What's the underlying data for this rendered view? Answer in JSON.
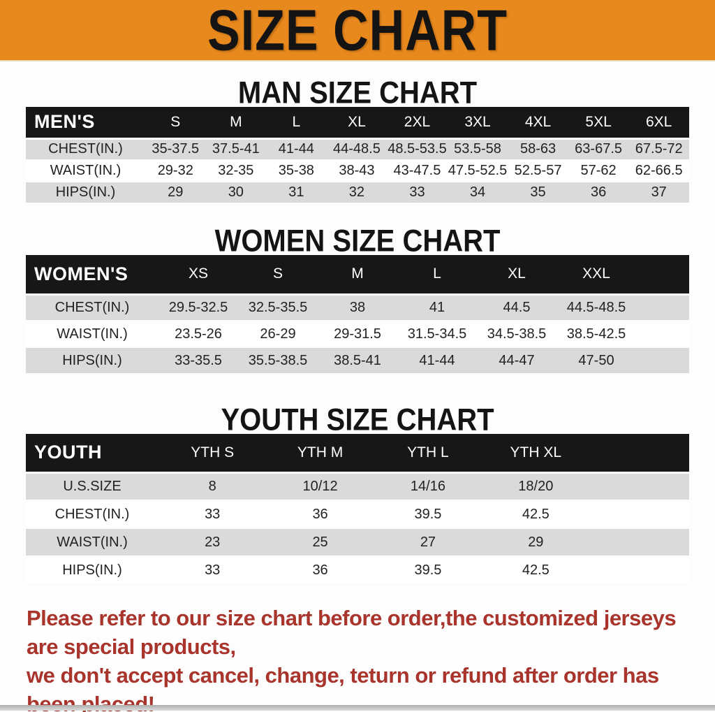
{
  "banner": {
    "title": "SIZE CHART"
  },
  "colors": {
    "banner_bg": "#E8891E",
    "header_bar": "#171717",
    "row_alt": "#DADADA",
    "footer_text": "#A8342C"
  },
  "chart_data": [
    {
      "type": "table",
      "title": "MAN SIZE CHART",
      "header_label": "MEN'S",
      "columns": [
        "S",
        "M",
        "L",
        "XL",
        "2XL",
        "3XL",
        "4XL",
        "5XL",
        "6XL"
      ],
      "rows": [
        {
          "label": "CHEST(IN.)",
          "values": [
            "35-37.5",
            "37.5-41",
            "41-44",
            "44-48.5",
            "48.5-53.5",
            "53.5-58",
            "58-63",
            "63-67.5",
            "67.5-72"
          ]
        },
        {
          "label": "WAIST(IN.)",
          "values": [
            "29-32",
            "32-35",
            "35-38",
            "38-43",
            "43-47.5",
            "47.5-52.5",
            "52.5-57",
            "57-62",
            "62-66.5"
          ]
        },
        {
          "label": "HIPS(IN.)",
          "values": [
            "29",
            "30",
            "31",
            "32",
            "33",
            "34",
            "35",
            "36",
            "37"
          ]
        }
      ]
    },
    {
      "type": "table",
      "title": "WOMEN SIZE CHART",
      "header_label": "WOMEN'S",
      "columns": [
        "XS",
        "S",
        "M",
        "L",
        "XL",
        "XXL"
      ],
      "rows": [
        {
          "label": "CHEST(IN.)",
          "values": [
            "29.5-32.5",
            "32.5-35.5",
            "38",
            "41",
            "44.5",
            "44.5-48.5"
          ]
        },
        {
          "label": "WAIST(IN.)",
          "values": [
            "23.5-26",
            "26-29",
            "29-31.5",
            "31.5-34.5",
            "34.5-38.5",
            "38.5-42.5"
          ]
        },
        {
          "label": "HIPS(IN.)",
          "values": [
            "33-35.5",
            "35.5-38.5",
            "38.5-41",
            "41-44",
            "44-47",
            "47-50"
          ]
        }
      ]
    },
    {
      "type": "table",
      "title": "YOUTH SIZE CHART",
      "header_label": "YOUTH",
      "columns": [
        "YTH S",
        "YTH M",
        "YTH L",
        "YTH XL"
      ],
      "rows": [
        {
          "label": "U.S.SIZE",
          "values": [
            "8",
            "10/12",
            "14/16",
            "18/20"
          ]
        },
        {
          "label": "CHEST(IN.)",
          "values": [
            "33",
            "36",
            "39.5",
            "42.5"
          ]
        },
        {
          "label": "WAIST(IN.)",
          "values": [
            "23",
            "25",
            "27",
            "29"
          ]
        },
        {
          "label": "HIPS(IN.)",
          "values": [
            "33",
            "36",
            "39.5",
            "42.5"
          ]
        }
      ]
    }
  ],
  "footer": {
    "line1": "Please refer to our size chart before order,the customized jerseys are special products,",
    "line2": "we don't accept cancel, change, teturn or refund after order has been placed!"
  }
}
